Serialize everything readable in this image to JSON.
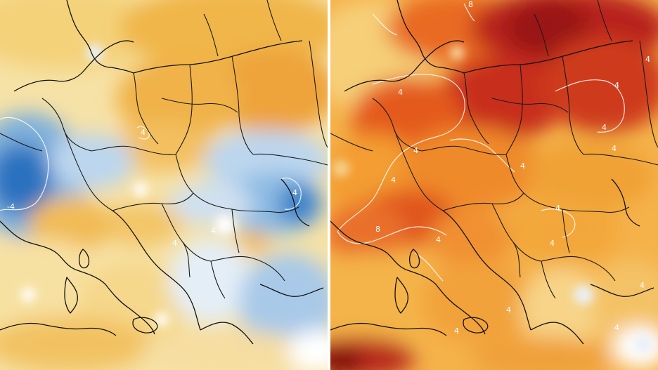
{
  "panels": [
    {
      "id": "left",
      "colors": {
        "cold_strong": "#1f66b8",
        "cold": "#7fb0dc",
        "cold_light": "#dbe9f5",
        "warm_light": "#f7e7b4",
        "warm": "#f2c462",
        "warm_strong": "#ef9c2c"
      },
      "contour_labels": [
        "4",
        "4",
        "4",
        "4",
        "-4"
      ]
    },
    {
      "id": "right",
      "colors": {
        "hot_extreme": "#8a0d0d",
        "hot_strong": "#c8261a",
        "hot": "#e35a1c",
        "warm": "#f39a2e",
        "warm_light": "#f8cf6c",
        "cool_light": "#dbe9f5"
      },
      "contour_labels": [
        "8",
        "4",
        "4",
        "4",
        "4",
        "4",
        "4",
        "4",
        "4",
        "8",
        "4",
        "4",
        "4",
        "4",
        "4",
        "4",
        "4"
      ]
    }
  ]
}
